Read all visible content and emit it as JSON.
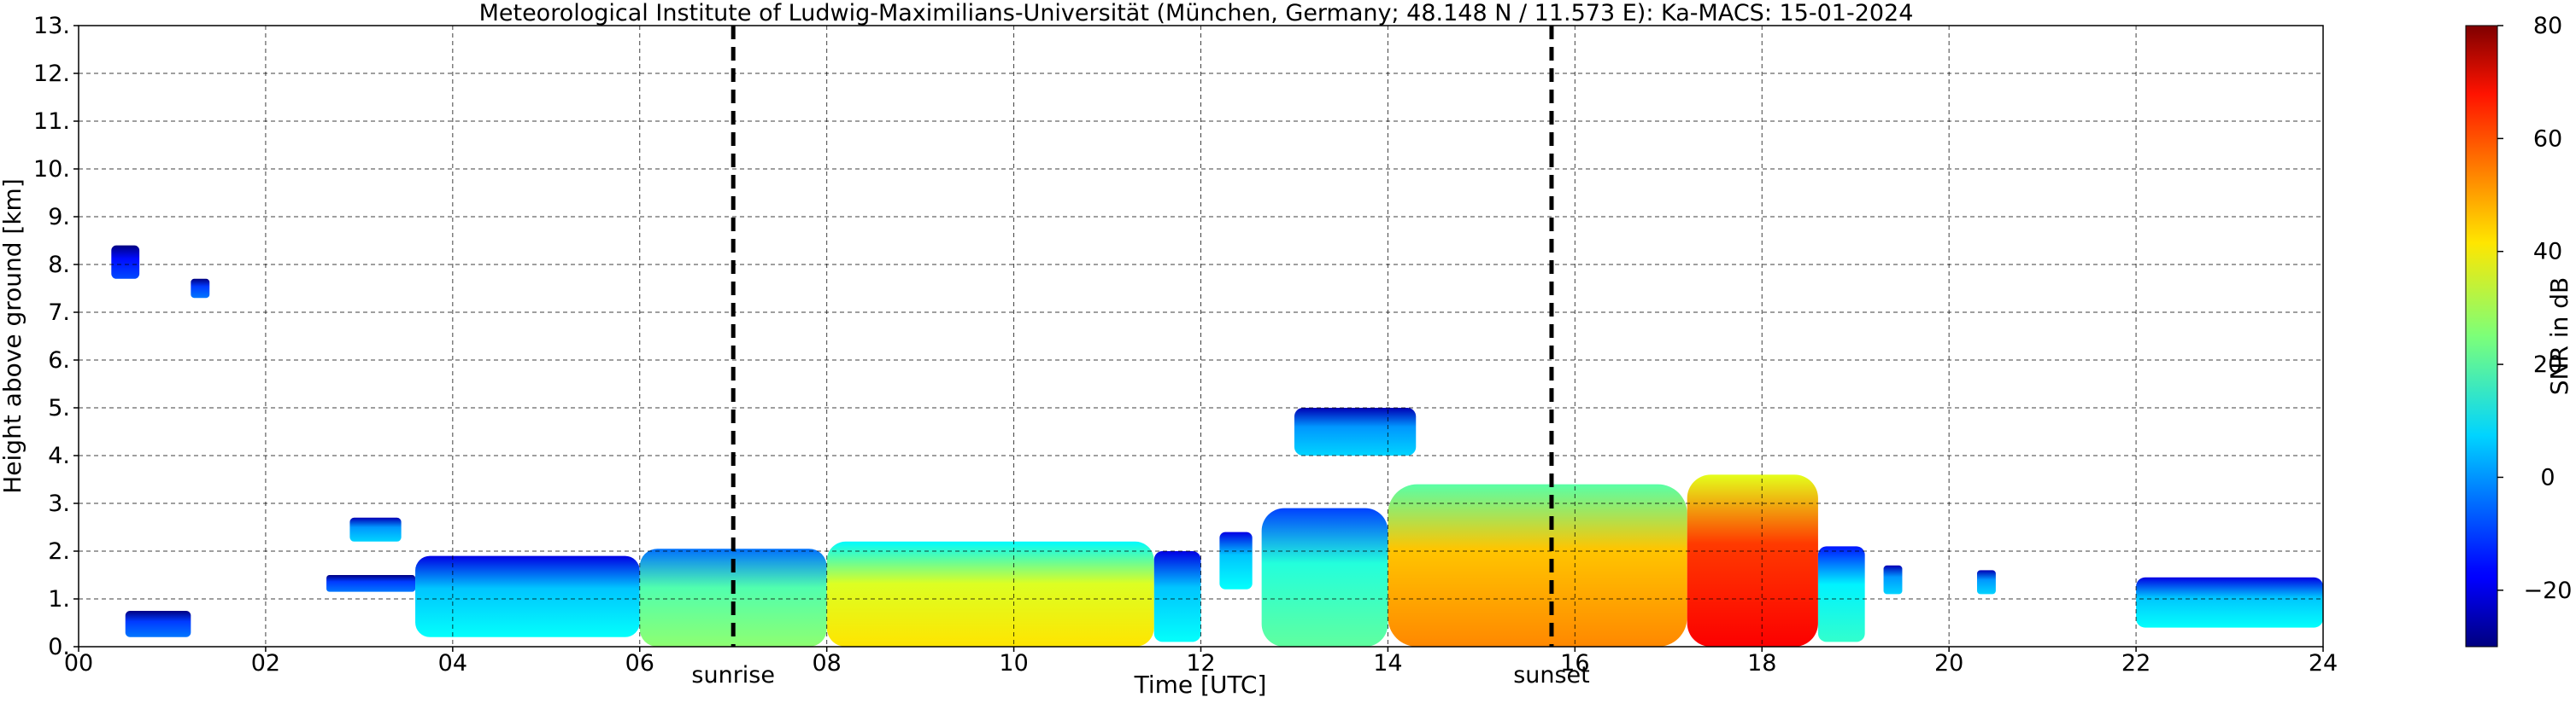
{
  "chart_data": {
    "type": "heatmap",
    "title": "Meteorological Institute of Ludwig-Maximilians-Universität (München, Germany; 48.148 N / 11.573 E):    Ka-MACS: 15-01-2024",
    "xlabel": "Time [UTC]",
    "ylabel": "Height above ground [km]",
    "xlim": [
      0,
      24
    ],
    "ylim": [
      0,
      13
    ],
    "grid": true,
    "x_ticks": [
      0,
      2,
      4,
      6,
      8,
      10,
      12,
      14,
      16,
      18,
      20,
      22,
      24
    ],
    "x_tick_labels": [
      "00",
      "02",
      "04",
      "06",
      "08",
      "10",
      "12",
      "14",
      "16",
      "18",
      "20",
      "22",
      "24"
    ],
    "y_ticks": [
      0,
      1,
      2,
      3,
      4,
      5,
      6,
      7,
      8,
      9,
      10,
      11,
      12,
      13
    ],
    "y_tick_labels": [
      "0.",
      "1.",
      "2.",
      "3.",
      "4.",
      "5.",
      "6.",
      "7.",
      "8.",
      "9.",
      "10.",
      "11.",
      "12.",
      "13."
    ],
    "events": [
      {
        "label": "sunrise",
        "x": 7.0
      },
      {
        "label": "sunset",
        "x": 15.75
      }
    ],
    "colorbar": {
      "label": "SNR in dB",
      "range": [
        -30,
        80
      ],
      "ticks": [
        -20,
        0,
        20,
        40,
        60,
        80
      ],
      "tick_labels": [
        "−20",
        "0",
        "20",
        "40",
        "60",
        "80"
      ],
      "colormap": "jet"
    },
    "echo_regions": [
      {
        "x_start": 0.35,
        "x_end": 0.65,
        "top_km": 8.4,
        "base_km": 7.7,
        "snr_db": -15
      },
      {
        "x_start": 0.5,
        "x_end": 1.2,
        "top_km": 0.75,
        "base_km": 0.2,
        "snr_db": -10
      },
      {
        "x_start": 1.2,
        "x_end": 1.4,
        "top_km": 7.7,
        "base_km": 7.3,
        "snr_db": -10
      },
      {
        "x_start": 2.9,
        "x_end": 3.45,
        "top_km": 2.7,
        "base_km": 2.2,
        "snr_db": 0
      },
      {
        "x_start": 2.65,
        "x_end": 3.6,
        "top_km": 1.5,
        "base_km": 1.15,
        "snr_db": -10
      },
      {
        "x_start": 3.6,
        "x_end": 6.0,
        "top_km": 1.9,
        "base_km": 0.2,
        "snr_db": 5
      },
      {
        "x_start": 6.0,
        "x_end": 8.0,
        "top_km": 2.05,
        "base_km": 0.0,
        "snr_db": 20
      },
      {
        "x_start": 8.0,
        "x_end": 11.5,
        "top_km": 2.2,
        "base_km": 0.0,
        "snr_db": 35
      },
      {
        "x_start": 11.5,
        "x_end": 12.0,
        "top_km": 2.0,
        "base_km": 0.1,
        "snr_db": 5
      },
      {
        "x_start": 12.2,
        "x_end": 12.55,
        "top_km": 2.4,
        "base_km": 1.2,
        "snr_db": 5
      },
      {
        "x_start": 13.0,
        "x_end": 14.3,
        "top_km": 5.0,
        "base_km": 4.0,
        "snr_db": 0
      },
      {
        "x_start": 12.65,
        "x_end": 14.0,
        "top_km": 2.9,
        "base_km": 0.0,
        "snr_db": 15
      },
      {
        "x_start": 14.0,
        "x_end": 17.2,
        "top_km": 3.4,
        "base_km": 0.0,
        "snr_db": 45
      },
      {
        "x_start": 17.2,
        "x_end": 18.6,
        "top_km": 3.6,
        "base_km": 0.0,
        "snr_db": 60
      },
      {
        "x_start": 18.6,
        "x_end": 19.1,
        "top_km": 2.1,
        "base_km": 0.1,
        "snr_db": 10
      },
      {
        "x_start": 19.3,
        "x_end": 19.5,
        "top_km": 1.7,
        "base_km": 1.1,
        "snr_db": 0
      },
      {
        "x_start": 20.3,
        "x_end": 20.5,
        "top_km": 1.6,
        "base_km": 1.1,
        "snr_db": 0
      },
      {
        "x_start": 22.0,
        "x_end": 24.0,
        "top_km": 1.45,
        "base_km": 0.4,
        "snr_db": 5
      }
    ]
  }
}
